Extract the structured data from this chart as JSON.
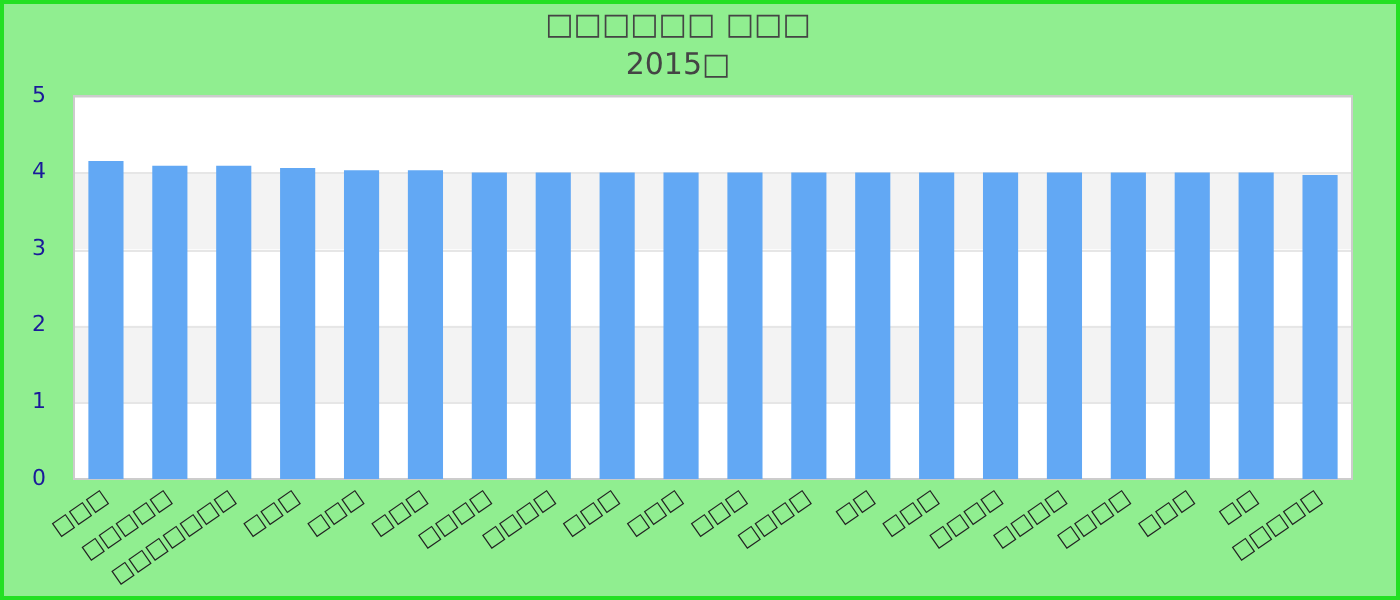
{
  "chart_data": {
    "type": "bar",
    "title": "□□□□□□ □□□",
    "subtitle": "2015□",
    "categories": [
      "□□□",
      "□□□□□",
      "□□□□□□□",
      "□□□",
      "□□□",
      "□□□",
      "□□□□",
      "□□□□",
      "□□□",
      "□□□",
      "□□□",
      "□□□□",
      "□□",
      "□□□",
      "□□□□",
      "□□□□",
      "□□□□",
      "□□□",
      "□□",
      "□□□□□"
    ],
    "values": [
      4.15,
      4.09,
      4.09,
      4.06,
      4.03,
      4.03,
      4.0,
      4.0,
      4.0,
      4.0,
      4.0,
      4.0,
      4.0,
      4.0,
      4.0,
      4.0,
      4.0,
      4.0,
      4.0,
      3.97
    ],
    "color": "#62a8f4",
    "ylim": [
      0,
      5
    ],
    "yticks": [
      0,
      1,
      2,
      3,
      4,
      5
    ],
    "grid": true,
    "legend": false
  }
}
